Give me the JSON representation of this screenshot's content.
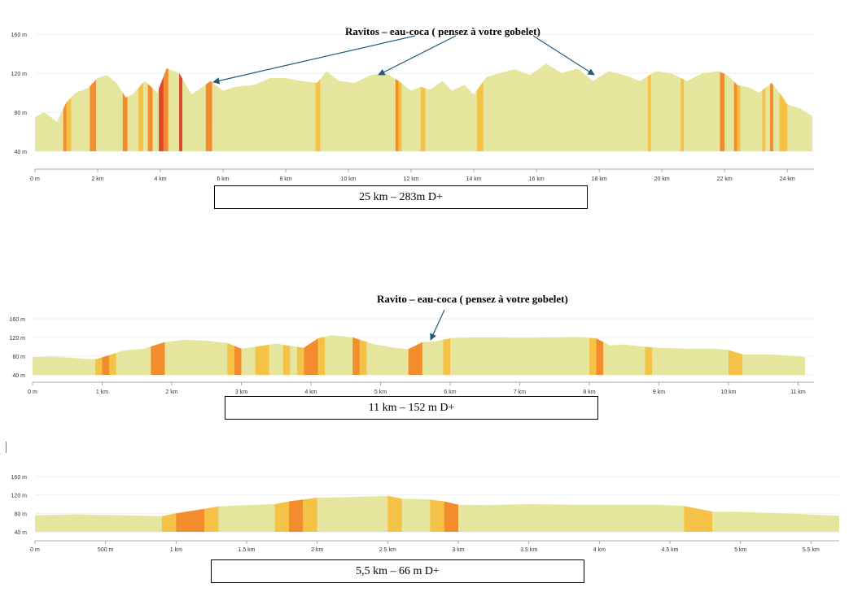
{
  "colors": {
    "base": "#e5e59e",
    "yellow": "#f4c247",
    "orange": "#f28c2c",
    "red": "#e0462a",
    "axis": "#aaaaaa",
    "arrow": "#1f5b7d",
    "grid": "#efefef"
  },
  "chart_data": [
    {
      "type": "area",
      "title": "",
      "xlabel": "",
      "ylabel": "",
      "x_unit": "km",
      "y_unit": "m",
      "xlim": [
        0,
        24.8
      ],
      "ylim": [
        40,
        160
      ],
      "x_ticks": [
        0,
        2,
        4,
        6,
        8,
        10,
        12,
        14,
        16,
        18,
        20,
        22,
        24
      ],
      "x_tick_labels": [
        "0 m",
        "2 km",
        "4 km",
        "6 km",
        "8 km",
        "10 km",
        "12 km",
        "14 km",
        "16 km",
        "18 km",
        "20 km",
        "22 km",
        "24 km"
      ],
      "y_ticks": [
        40,
        80,
        120,
        160
      ],
      "y_tick_labels": [
        "40 m",
        "80 m",
        "120 m",
        "160 m"
      ],
      "grid": true,
      "series": [
        {
          "x": [
            0,
            0.3,
            0.7,
            1.0,
            1.3,
            1.7,
            2.0,
            2.3,
            2.6,
            2.9,
            3.1,
            3.5,
            3.9,
            4.2,
            4.6,
            5.0,
            5.3,
            5.6,
            6.0,
            6.4,
            7.0,
            7.5,
            8.0,
            8.5,
            9.0,
            9.3,
            9.7,
            10.2,
            10.7,
            11.2,
            11.6,
            12.0,
            12.3,
            12.6,
            13.0,
            13.3,
            13.7,
            14.0,
            14.4,
            14.8,
            15.3,
            15.8,
            16.3,
            16.8,
            17.3,
            17.8,
            18.3,
            18.8,
            19.3,
            19.8,
            20.3,
            20.8,
            21.3,
            21.8,
            22.1,
            22.4,
            22.8,
            23.1,
            23.5,
            23.8,
            24.0,
            24.4,
            24.8
          ],
          "y": [
            75,
            80,
            70,
            90,
            100,
            105,
            115,
            118,
            110,
            95,
            98,
            112,
            100,
            125,
            120,
            98,
            105,
            112,
            102,
            106,
            108,
            115,
            115,
            112,
            110,
            122,
            112,
            110,
            118,
            120,
            112,
            102,
            106,
            103,
            112,
            102,
            108,
            98,
            116,
            120,
            124,
            118,
            130,
            120,
            125,
            112,
            122,
            118,
            112,
            122,
            120,
            112,
            120,
            122,
            118,
            108,
            105,
            100,
            110,
            98,
            88,
            84,
            76
          ]
        }
      ],
      "grade_bands": [
        {
          "x0": 0.9,
          "x1": 1.0,
          "level": "orange"
        },
        {
          "x0": 1.0,
          "x1": 1.15,
          "level": "yellow"
        },
        {
          "x0": 1.75,
          "x1": 1.95,
          "level": "orange"
        },
        {
          "x0": 2.8,
          "x1": 2.95,
          "level": "orange"
        },
        {
          "x0": 3.3,
          "x1": 3.45,
          "level": "yellow"
        },
        {
          "x0": 3.6,
          "x1": 3.75,
          "level": "orange"
        },
        {
          "x0": 3.95,
          "x1": 4.1,
          "level": "red"
        },
        {
          "x0": 4.1,
          "x1": 4.25,
          "level": "orange"
        },
        {
          "x0": 4.6,
          "x1": 4.7,
          "level": "red"
        },
        {
          "x0": 5.45,
          "x1": 5.65,
          "level": "orange"
        },
        {
          "x0": 8.95,
          "x1": 9.1,
          "level": "yellow"
        },
        {
          "x0": 11.5,
          "x1": 11.6,
          "level": "orange"
        },
        {
          "x0": 11.6,
          "x1": 11.7,
          "level": "yellow"
        },
        {
          "x0": 12.3,
          "x1": 12.45,
          "level": "yellow"
        },
        {
          "x0": 14.1,
          "x1": 14.3,
          "level": "yellow"
        },
        {
          "x0": 19.55,
          "x1": 19.65,
          "level": "yellow"
        },
        {
          "x0": 20.6,
          "x1": 20.7,
          "level": "yellow"
        },
        {
          "x0": 21.85,
          "x1": 22.0,
          "level": "orange"
        },
        {
          "x0": 22.3,
          "x1": 22.4,
          "level": "orange"
        },
        {
          "x0": 22.4,
          "x1": 22.5,
          "level": "yellow"
        },
        {
          "x0": 23.2,
          "x1": 23.3,
          "level": "yellow"
        },
        {
          "x0": 23.45,
          "x1": 23.55,
          "level": "orange"
        },
        {
          "x0": 23.75,
          "x1": 24.0,
          "level": "yellow"
        }
      ]
    },
    {
      "type": "area",
      "title": "",
      "xlabel": "",
      "ylabel": "",
      "x_unit": "km",
      "y_unit": "m",
      "xlim": [
        0,
        11.1
      ],
      "ylim": [
        40,
        160
      ],
      "x_ticks": [
        0,
        1,
        2,
        3,
        4,
        5,
        6,
        7,
        8,
        9,
        10,
        11
      ],
      "x_tick_labels": [
        "0 m",
        "1 km",
        "2 km",
        "3 km",
        "4 km",
        "5 km",
        "6 km",
        "7 km",
        "8 km",
        "9 km",
        "10 km",
        "11 km"
      ],
      "y_ticks": [
        40,
        80,
        120,
        160
      ],
      "y_tick_labels": [
        "40 m",
        "80 m",
        "120 m",
        "160 m"
      ],
      "grid": true,
      "series": [
        {
          "x": [
            0,
            0.3,
            0.6,
            0.9,
            1.1,
            1.3,
            1.6,
            1.9,
            2.2,
            2.5,
            2.8,
            3.0,
            3.2,
            3.5,
            3.7,
            3.9,
            4.1,
            4.3,
            4.6,
            4.9,
            5.2,
            5.4,
            5.6,
            5.8,
            6.0,
            6.3,
            6.7,
            7.0,
            7.4,
            7.8,
            8.1,
            8.3,
            8.5,
            8.8,
            9.0,
            9.4,
            9.8,
            10.0,
            10.2,
            10.6,
            11.1
          ],
          "y": [
            78,
            79,
            76,
            73,
            82,
            92,
            96,
            110,
            115,
            113,
            108,
            96,
            100,
            107,
            102,
            98,
            118,
            125,
            120,
            106,
            98,
            95,
            110,
            112,
            118,
            120,
            120,
            119,
            120,
            121,
            118,
            103,
            105,
            100,
            98,
            96,
            96,
            93,
            84,
            84,
            78
          ]
        }
      ],
      "grade_bands": [
        {
          "x0": 0.9,
          "x1": 1.0,
          "level": "yellow"
        },
        {
          "x0": 1.0,
          "x1": 1.1,
          "level": "orange"
        },
        {
          "x0": 1.1,
          "x1": 1.2,
          "level": "yellow"
        },
        {
          "x0": 1.7,
          "x1": 1.9,
          "level": "orange"
        },
        {
          "x0": 2.8,
          "x1": 2.9,
          "level": "yellow"
        },
        {
          "x0": 2.9,
          "x1": 3.0,
          "level": "orange"
        },
        {
          "x0": 3.2,
          "x1": 3.4,
          "level": "yellow"
        },
        {
          "x0": 3.6,
          "x1": 3.7,
          "level": "yellow"
        },
        {
          "x0": 3.8,
          "x1": 3.9,
          "level": "yellow"
        },
        {
          "x0": 3.9,
          "x1": 4.1,
          "level": "orange"
        },
        {
          "x0": 4.1,
          "x1": 4.2,
          "level": "yellow"
        },
        {
          "x0": 4.6,
          "x1": 4.7,
          "level": "orange"
        },
        {
          "x0": 4.7,
          "x1": 4.8,
          "level": "yellow"
        },
        {
          "x0": 5.4,
          "x1": 5.6,
          "level": "orange"
        },
        {
          "x0": 5.9,
          "x1": 6.0,
          "level": "yellow"
        },
        {
          "x0": 8.0,
          "x1": 8.1,
          "level": "yellow"
        },
        {
          "x0": 8.1,
          "x1": 8.2,
          "level": "orange"
        },
        {
          "x0": 8.8,
          "x1": 8.9,
          "level": "yellow"
        },
        {
          "x0": 10.0,
          "x1": 10.2,
          "level": "yellow"
        }
      ]
    },
    {
      "type": "area",
      "title": "",
      "xlabel": "",
      "ylabel": "",
      "x_unit": "km",
      "y_unit": "m",
      "xlim": [
        0,
        5.7
      ],
      "ylim": [
        40,
        160
      ],
      "x_ticks": [
        0,
        0.5,
        1,
        1.5,
        2,
        2.5,
        3,
        3.5,
        4,
        4.5,
        5,
        5.5
      ],
      "x_tick_labels": [
        "0 m",
        "500 m",
        "1 km",
        "1.5 km",
        "2 km",
        "2.5 km",
        "3 km",
        "3.5 km",
        "4 km",
        "4.5 km",
        "5 km",
        "5.5 km"
      ],
      "y_ticks": [
        40,
        80,
        120,
        160
      ],
      "y_tick_labels": [
        "40 m",
        "80 m",
        "120 m",
        "160 m"
      ],
      "grid": true,
      "series": [
        {
          "x": [
            0,
            0.3,
            0.6,
            0.9,
            1.0,
            1.2,
            1.3,
            1.5,
            1.7,
            1.8,
            1.9,
            2.0,
            2.2,
            2.5,
            2.6,
            2.8,
            2.9,
            3.0,
            3.2,
            3.5,
            3.8,
            4.1,
            4.4,
            4.6,
            4.8,
            5.0,
            5.3,
            5.7
          ],
          "y": [
            76,
            78,
            76,
            74,
            80,
            90,
            95,
            98,
            100,
            106,
            110,
            114,
            115,
            118,
            112,
            110,
            106,
            99,
            98,
            100,
            99,
            99,
            99,
            96,
            84,
            83,
            80,
            75
          ]
        }
      ],
      "grade_bands": [
        {
          "x0": 0.9,
          "x1": 1.0,
          "level": "yellow"
        },
        {
          "x0": 1.0,
          "x1": 1.2,
          "level": "orange"
        },
        {
          "x0": 1.2,
          "x1": 1.3,
          "level": "yellow"
        },
        {
          "x0": 1.7,
          "x1": 1.8,
          "level": "yellow"
        },
        {
          "x0": 1.8,
          "x1": 1.9,
          "level": "orange"
        },
        {
          "x0": 1.9,
          "x1": 2.0,
          "level": "yellow"
        },
        {
          "x0": 2.5,
          "x1": 2.6,
          "level": "yellow"
        },
        {
          "x0": 2.8,
          "x1": 2.9,
          "level": "yellow"
        },
        {
          "x0": 2.9,
          "x1": 3.0,
          "level": "orange"
        },
        {
          "x0": 4.6,
          "x1": 4.8,
          "level": "yellow"
        }
      ]
    }
  ],
  "captions": [
    "25 km – 283m D+",
    "11 km – 152 m D+",
    "5,5 km – 66 m D+"
  ],
  "annotations": {
    "top": "Ravitos – eau-coca ( pensez à votre gobelet)",
    "middle": "Ravito – eau-coca ( pensez à votre gobelet)"
  }
}
